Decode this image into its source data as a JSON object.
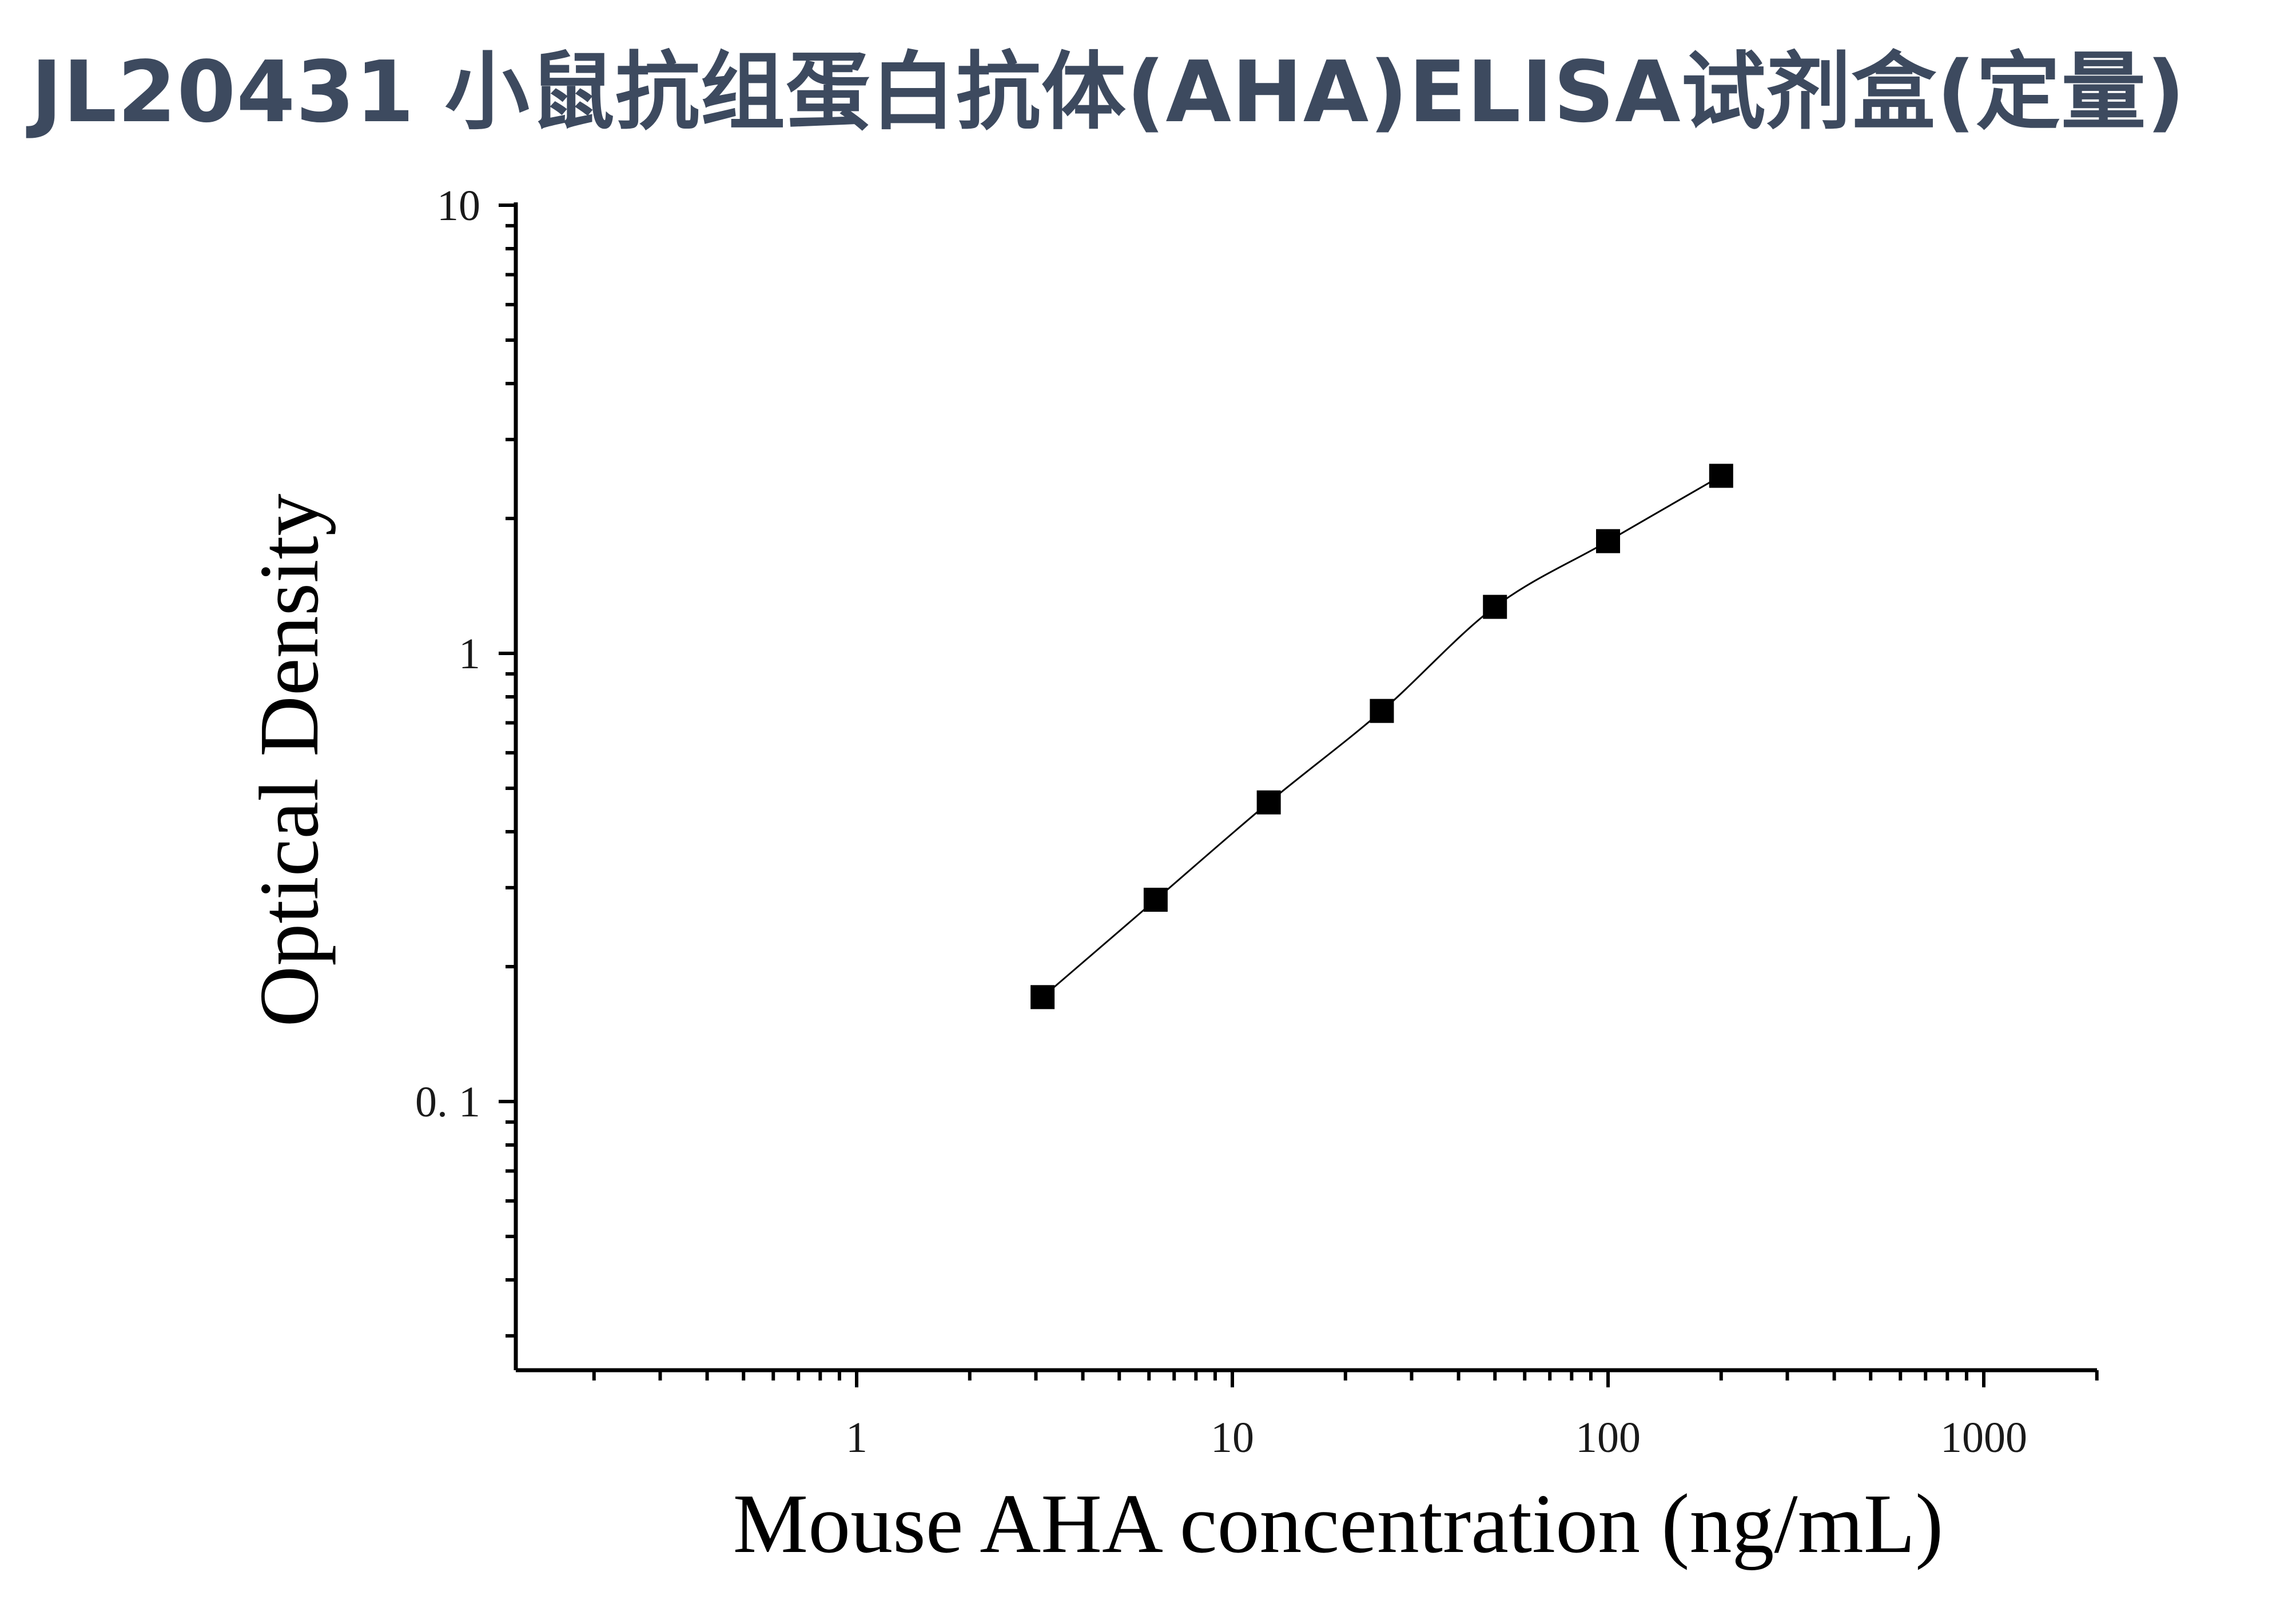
{
  "page": {
    "title": "JL20431 小鼠抗组蛋白抗体(AHA)ELISA试剂盒(定量)"
  },
  "colors": {
    "title": "#3d4a5f",
    "axis": "#000000",
    "marker": "#000000"
  },
  "chart_data": {
    "type": "scatter",
    "title": "",
    "xlabel": "Mouse AHA concentration (ng/mL)",
    "ylabel": "Optical Density",
    "x_scale": "log",
    "y_scale": "log",
    "xlim": [
      0.1,
      2000
    ],
    "ylim": [
      0.025,
      10
    ],
    "x_ticks": [
      1,
      10,
      100,
      1000
    ],
    "x_tick_labels": [
      "1",
      "10",
      "100",
      "1000"
    ],
    "y_ticks": [
      0.1,
      1,
      10
    ],
    "y_tick_labels": [
      "0. 1",
      "1",
      "10"
    ],
    "grid": false,
    "legend": "none",
    "marker": "square",
    "fit_line": true,
    "series": [
      {
        "x": [
          3.125,
          6.25,
          12.5,
          25,
          50,
          100,
          200
        ],
        "y": [
          0.171,
          0.282,
          0.465,
          0.744,
          1.27,
          1.78,
          2.49
        ]
      }
    ]
  }
}
